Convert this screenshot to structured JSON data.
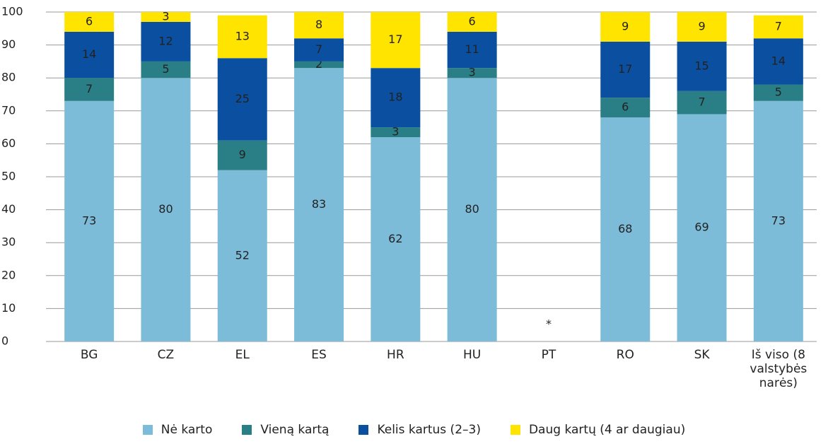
{
  "chart_data": {
    "type": "stacked_bar",
    "categories": [
      "BG",
      "CZ",
      "EL",
      "ES",
      "HR",
      "HU",
      "PT",
      "RO",
      "SK",
      "Iš viso (8 valstybės narės)"
    ],
    "series": [
      {
        "name": "Nė karto",
        "color": "#7dbcd9",
        "label_color": "#333333",
        "values": [
          73,
          80,
          52,
          83,
          62,
          80,
          null,
          68,
          69,
          73
        ]
      },
      {
        "name": "Vieną kartą",
        "color": "#2a7f86",
        "label_color": "#ffffff",
        "values": [
          7,
          5,
          9,
          2,
          3,
          3,
          null,
          6,
          7,
          5
        ]
      },
      {
        "name": "Kelis kartus (2–3)",
        "color": "#0b4fa0",
        "label_color": "#ffffff",
        "values": [
          14,
          12,
          25,
          7,
          18,
          11,
          null,
          17,
          15,
          14
        ]
      },
      {
        "name": "Daug kartų (4 ar daugiau)",
        "color": "#ffe400",
        "label_color": "#333333",
        "values": [
          6,
          3,
          13,
          8,
          17,
          6,
          null,
          9,
          9,
          7
        ]
      }
    ],
    "annotation": "*",
    "ylim": [
      0,
      100
    ],
    "yticks": [
      0,
      10,
      20,
      30,
      40,
      50,
      60,
      70,
      80,
      90,
      100
    ],
    "grid": true
  }
}
